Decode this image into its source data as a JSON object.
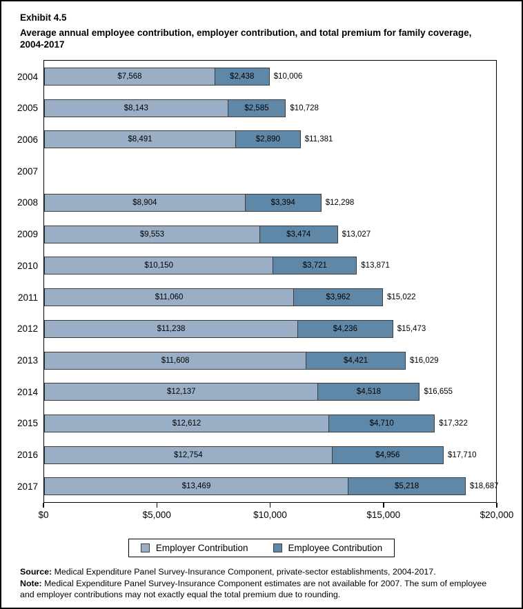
{
  "header": {
    "exhibit": "Exhibit 4.5",
    "title": "Average annual employee contribution, employer contribution, and total premium for family coverage, 2004-2017"
  },
  "colors": {
    "employer": "#9AAFC5",
    "employee": "#5F87A8",
    "bar_border": "#3d3d3d"
  },
  "chart_data": {
    "type": "bar",
    "orientation": "horizontal",
    "stacked": true,
    "title": "Average annual employee contribution, employer contribution, and total premium for family coverage, 2004-2017",
    "xlabel": "",
    "ylabel": "",
    "xlim": [
      0,
      20000
    ],
    "grid": false,
    "legend_position": "bottom",
    "x_ticks": [
      {
        "value": 0,
        "label": "$0"
      },
      {
        "value": 5000,
        "label": "$5,000"
      },
      {
        "value": 10000,
        "label": "$10,000"
      },
      {
        "value": 15000,
        "label": "$15,000"
      },
      {
        "value": 20000,
        "label": "$20,000"
      }
    ],
    "legend": [
      {
        "name": "Employer Contribution",
        "color": "#9AAFC5"
      },
      {
        "name": "Employee Contribution",
        "color": "#5F87A8"
      }
    ],
    "categories": [
      "2004",
      "2005",
      "2006",
      "2007",
      "2008",
      "2009",
      "2010",
      "2011",
      "2012",
      "2013",
      "2014",
      "2015",
      "2016",
      "2017"
    ],
    "rows": [
      {
        "year": "2004",
        "employer": 7568,
        "employer_label": "$7,568",
        "employee": 2438,
        "employee_label": "$2,438",
        "total": 10006,
        "total_label": "$10,006"
      },
      {
        "year": "2005",
        "employer": 8143,
        "employer_label": "$8,143",
        "employee": 2585,
        "employee_label": "$2,585",
        "total": 10728,
        "total_label": "$10,728"
      },
      {
        "year": "2006",
        "employer": 8491,
        "employer_label": "$8,491",
        "employee": 2890,
        "employee_label": "$2,890",
        "total": 11381,
        "total_label": "$11,381"
      },
      {
        "year": "2007",
        "employer": null,
        "employer_label": "",
        "employee": null,
        "employee_label": "",
        "total": null,
        "total_label": ""
      },
      {
        "year": "2008",
        "employer": 8904,
        "employer_label": "$8,904",
        "employee": 3394,
        "employee_label": "$3,394",
        "total": 12298,
        "total_label": "$12,298"
      },
      {
        "year": "2009",
        "employer": 9553,
        "employer_label": "$9,553",
        "employee": 3474,
        "employee_label": "$3,474",
        "total": 13027,
        "total_label": "$13,027"
      },
      {
        "year": "2010",
        "employer": 10150,
        "employer_label": "$10,150",
        "employee": 3721,
        "employee_label": "$3,721",
        "total": 13871,
        "total_label": "$13,871"
      },
      {
        "year": "2011",
        "employer": 11060,
        "employer_label": "$11,060",
        "employee": 3962,
        "employee_label": "$3,962",
        "total": 15022,
        "total_label": "$15,022"
      },
      {
        "year": "2012",
        "employer": 11238,
        "employer_label": "$11,238",
        "employee": 4236,
        "employee_label": "$4,236",
        "total": 15473,
        "total_label": "$15,473"
      },
      {
        "year": "2013",
        "employer": 11608,
        "employer_label": "$11,608",
        "employee": 4421,
        "employee_label": "$4,421",
        "total": 16029,
        "total_label": "$16,029"
      },
      {
        "year": "2014",
        "employer": 12137,
        "employer_label": "$12,137",
        "employee": 4518,
        "employee_label": "$4,518",
        "total": 16655,
        "total_label": "$16,655"
      },
      {
        "year": "2015",
        "employer": 12612,
        "employer_label": "$12,612",
        "employee": 4710,
        "employee_label": "$4,710",
        "total": 17322,
        "total_label": "$17,322"
      },
      {
        "year": "2016",
        "employer": 12754,
        "employer_label": "$12,754",
        "employee": 4956,
        "employee_label": "$4,956",
        "total": 17710,
        "total_label": "$17,710"
      },
      {
        "year": "2017",
        "employer": 13469,
        "employer_label": "$13,469",
        "employee": 5218,
        "employee_label": "$5,218",
        "total": 18687,
        "total_label": "$18,687"
      }
    ]
  },
  "footer": {
    "source_label": "Source:",
    "source_text": " Medical Expenditure Panel Survey-Insurance Component, private-sector establishments, 2004-2017.",
    "note_label": "Note:",
    "note_text": " Medical Expenditure Panel Survey-Insurance Component estimates are not available for 2007. The sum of employee and employer contributions may not exactly equal the total premium due to rounding."
  }
}
